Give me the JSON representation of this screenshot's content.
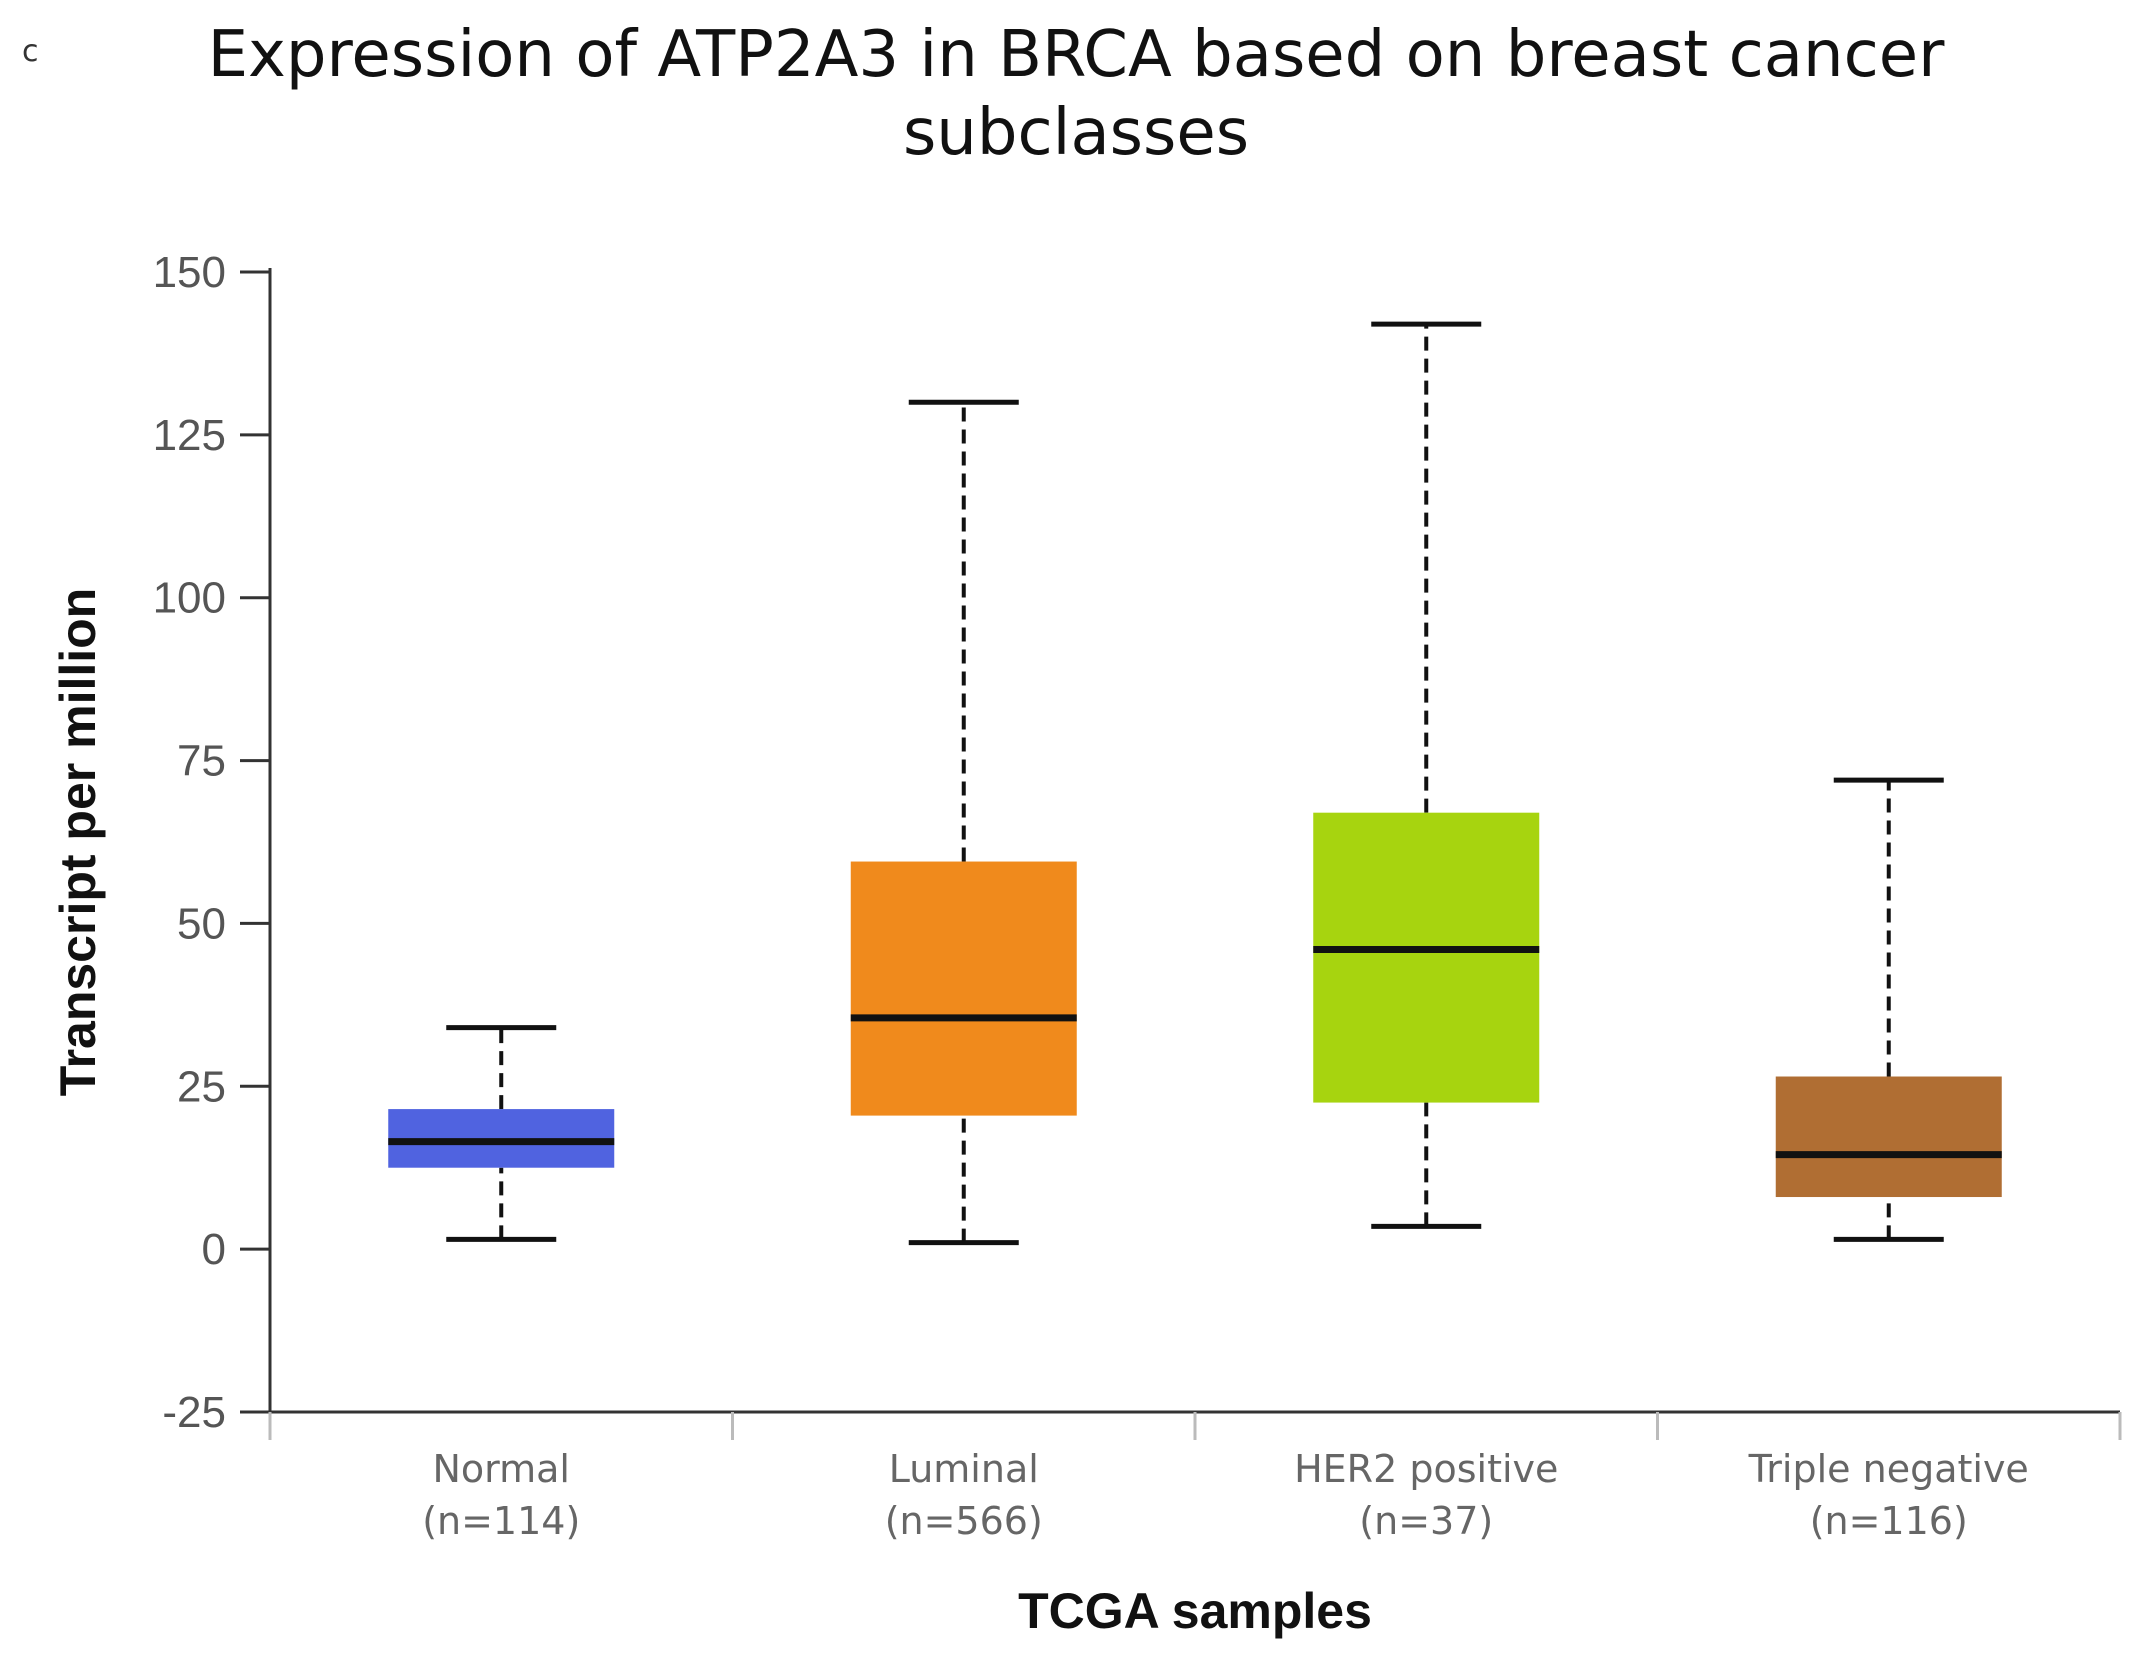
{
  "panel_label": "c",
  "chart_data": {
    "type": "boxplot",
    "title": "Expression of ATP2A3 in BRCA based on breast cancer subclasses",
    "title_lines": [
      "Expression of ATP2A3 in BRCA based on breast cancer",
      "subclasses"
    ],
    "xlabel": "TCGA samples",
    "ylabel": "Transcript per million",
    "ylim": [
      -25,
      150
    ],
    "yticks": [
      -25,
      0,
      25,
      50,
      75,
      100,
      125,
      150
    ],
    "grid": false,
    "categories": [
      "Normal",
      "Luminal",
      "HER2 positive",
      "Triple negative"
    ],
    "sample_counts": [
      "(n=114)",
      "(n=566)",
      "(n=37)",
      "(n=116)"
    ],
    "boxes": [
      {
        "category": "Normal",
        "whisker_low": 1.5,
        "q1": 12.5,
        "median": 16.5,
        "q3": 21.5,
        "whisker_high": 34,
        "color": "#5063e0"
      },
      {
        "category": "Luminal",
        "whisker_low": 1,
        "q1": 20.5,
        "median": 35.5,
        "q3": 59.5,
        "whisker_high": 130,
        "color": "#f08a1c"
      },
      {
        "category": "HER2 positive",
        "whisker_low": 3.5,
        "q1": 22.5,
        "median": 46,
        "q3": 67,
        "whisker_high": 142,
        "color": "#a7d40f"
      },
      {
        "category": "Triple negative",
        "whisker_low": 1.5,
        "q1": 8,
        "median": 14.5,
        "q3": 26.5,
        "whisker_high": 72,
        "color": "#b06e33"
      }
    ]
  }
}
